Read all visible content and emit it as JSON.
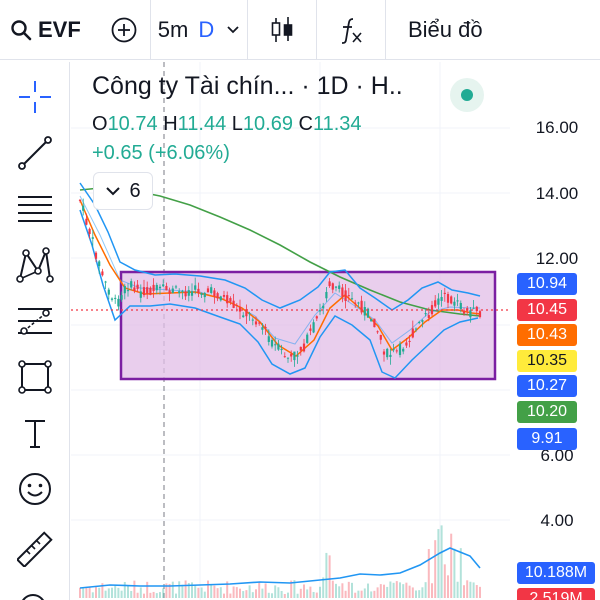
{
  "toolbar": {
    "symbol": "EVF",
    "interval": "5m",
    "interval_type": "D",
    "chart_type_label": "Biểu đồ"
  },
  "legend": {
    "title": "Công ty Tài chín... · 1D · H..",
    "open_label": "O",
    "open": "10.74",
    "high_label": "H",
    "high": "11.44",
    "low_label": "L",
    "low": "10.69",
    "close_label": "C",
    "close": "11.34",
    "change": "+0.65 (+6.06%)",
    "indicator_count": "6"
  },
  "price_axis": {
    "ticks": [
      "16.00",
      "14.00",
      "12.00",
      "6.00",
      "4.00"
    ]
  },
  "price_tags": [
    {
      "value": "10.94",
      "color": "#2962ff"
    },
    {
      "value": "10.45",
      "color": "#f23645"
    },
    {
      "value": "10.43",
      "color": "#ff6d00"
    },
    {
      "value": "10.35",
      "color": "#ffeb3b"
    },
    {
      "value": "10.27",
      "color": "#2962ff"
    },
    {
      "value": "10.20",
      "color": "#43a047"
    },
    {
      "value": "9.91",
      "color": "#2962ff"
    },
    {
      "value": "10.188M",
      "color": "#2962ff"
    },
    {
      "value": "2.519M",
      "color": "#f23645"
    }
  ],
  "colors": {
    "up": "#22ab94",
    "down": "#f23645",
    "bollinger": "#2196f3",
    "ma_fast": "#ff6d00",
    "ma_slow": "#43a047",
    "rectangle_border": "#7b1fa2",
    "rectangle_fill": "#e1bee7"
  },
  "icons": {
    "crosshair": "crosshair-icon",
    "trendline": "trendline-icon",
    "fib": "fib-retracement-icon",
    "pattern": "xabcd-pattern-icon",
    "forecast": "forecast-icon",
    "rectangle": "rectangle-icon",
    "text": "text-icon",
    "emoji": "emoji-icon",
    "ruler": "ruler-icon"
  }
}
